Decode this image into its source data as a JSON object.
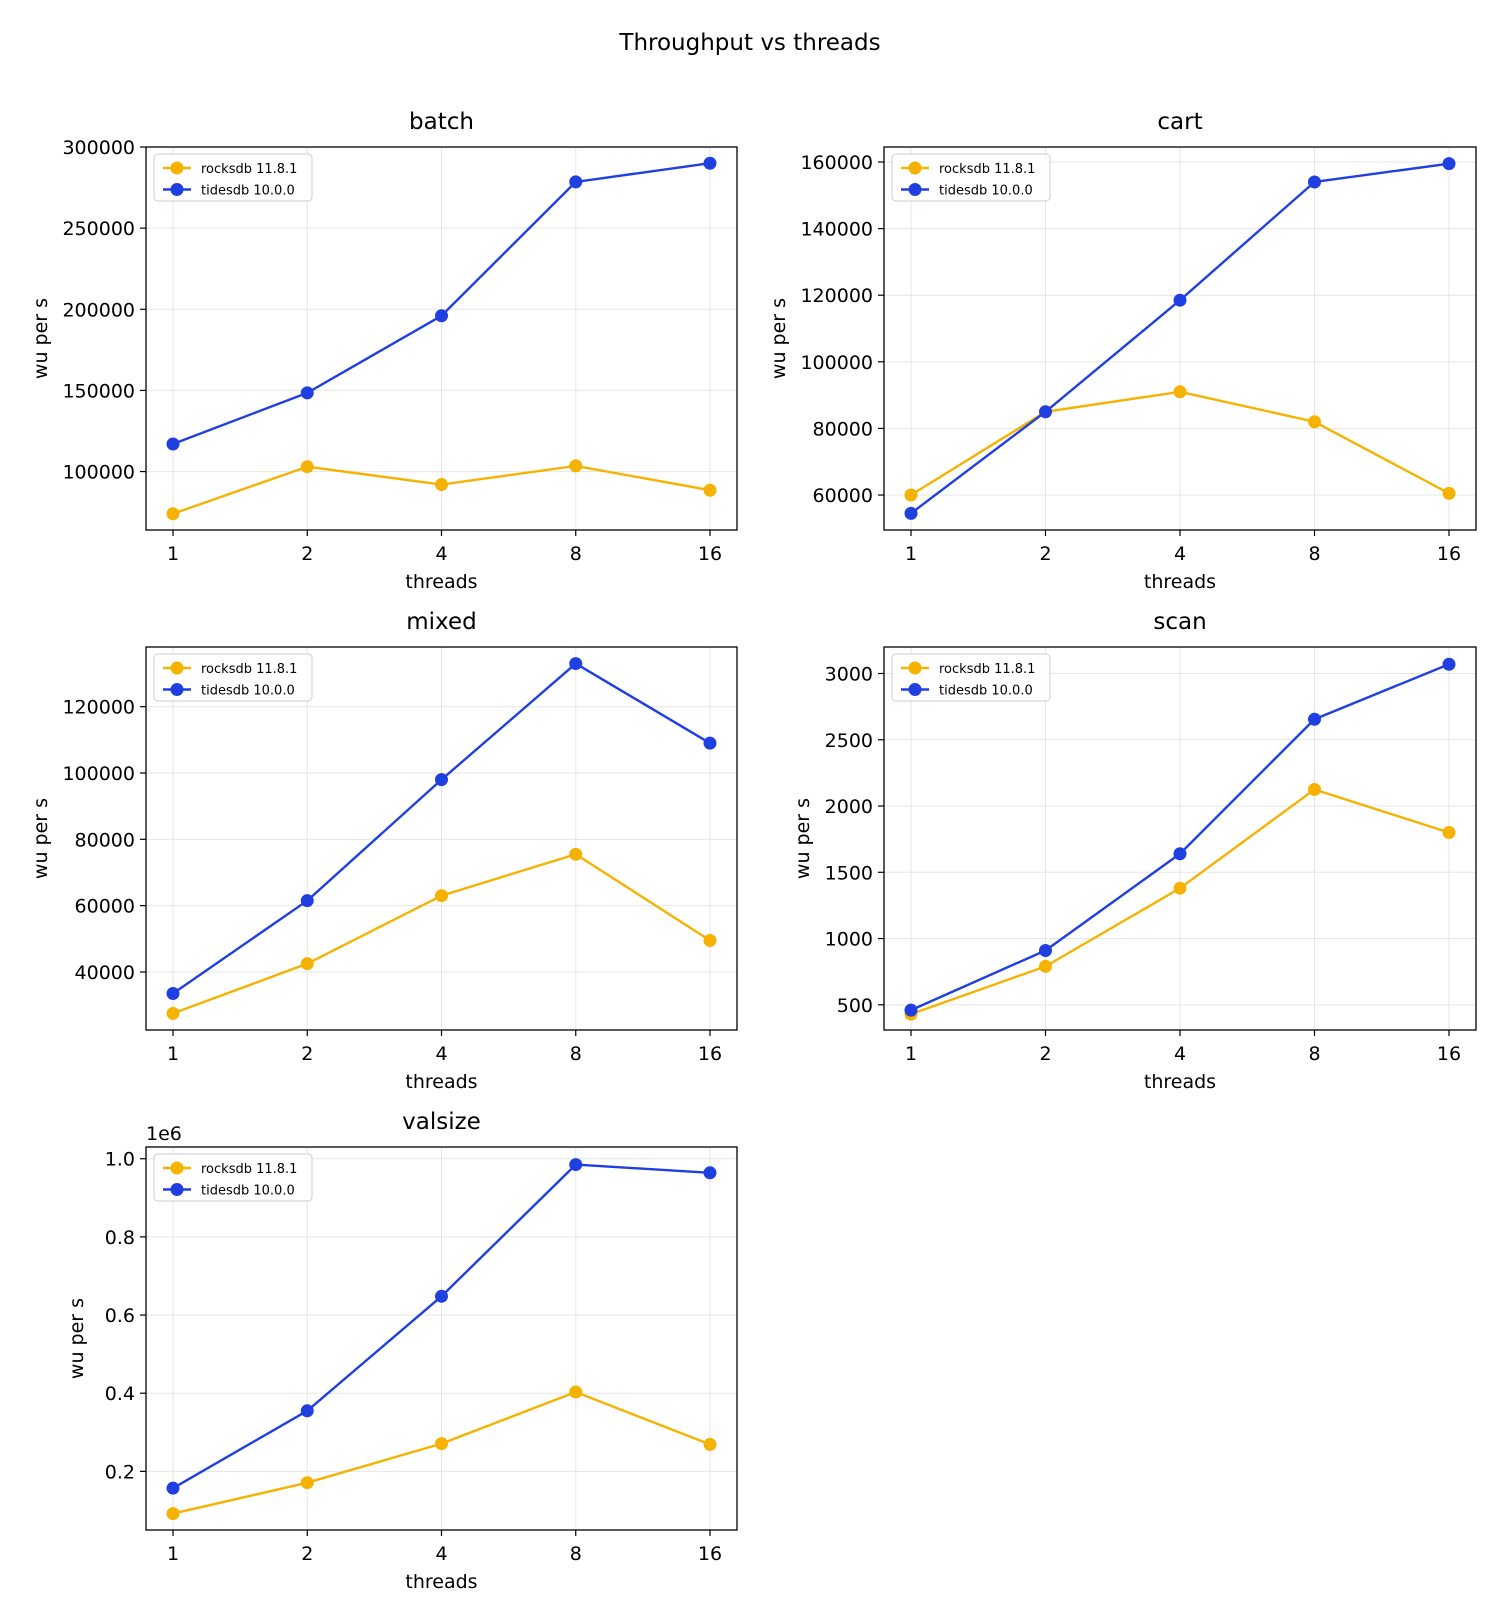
{
  "figure": {
    "title": "Throughput vs threads"
  },
  "colors": {
    "rocksdb": "#f5b200",
    "tidesdb": "#1f3fe0",
    "grid": "#e6e6e6",
    "axes": "#000000"
  },
  "chart_data": [
    {
      "type": "line",
      "title": "batch",
      "xlabel": "threads",
      "ylabel": "wu per s",
      "x": [
        1,
        2,
        4,
        8,
        16
      ],
      "x_scale": "log2",
      "yticks": [
        100000,
        150000,
        200000,
        250000,
        300000
      ],
      "ylim": [
        64000,
        300000
      ],
      "ytick_labels": [
        "100000",
        "150000",
        "200000",
        "250000",
        "300000"
      ],
      "y_offset_label": "",
      "grid": true,
      "legend_position": "upper-left",
      "series": [
        {
          "name": "rocksdb 11.8.1",
          "color": "#f5b200",
          "values": [
            74000,
            103000,
            92000,
            103500,
            88500
          ]
        },
        {
          "name": "tidesdb 10.0.0",
          "color": "#1f3fe0",
          "values": [
            117000,
            148500,
            196000,
            278500,
            290000
          ]
        }
      ]
    },
    {
      "type": "line",
      "title": "cart",
      "xlabel": "threads",
      "ylabel": "wu per s",
      "x": [
        1,
        2,
        4,
        8,
        16
      ],
      "x_scale": "log2",
      "yticks": [
        60000,
        80000,
        100000,
        120000,
        140000,
        160000
      ],
      "ylim": [
        49500,
        164500
      ],
      "ytick_labels": [
        "60000",
        "80000",
        "100000",
        "120000",
        "140000",
        "160000"
      ],
      "y_offset_label": "",
      "grid": true,
      "legend_position": "upper-left",
      "series": [
        {
          "name": "rocksdb 11.8.1",
          "color": "#f5b200",
          "values": [
            60000,
            85000,
            91000,
            82000,
            60500
          ]
        },
        {
          "name": "tidesdb 10.0.0",
          "color": "#1f3fe0",
          "values": [
            54500,
            85000,
            118500,
            154000,
            159500
          ]
        }
      ]
    },
    {
      "type": "line",
      "title": "mixed",
      "xlabel": "threads",
      "ylabel": "wu per s",
      "x": [
        1,
        2,
        4,
        8,
        16
      ],
      "x_scale": "log2",
      "yticks": [
        40000,
        60000,
        80000,
        100000,
        120000
      ],
      "ylim": [
        22500,
        138000
      ],
      "ytick_labels": [
        "40000",
        "60000",
        "80000",
        "100000",
        "120000"
      ],
      "y_offset_label": "",
      "grid": true,
      "legend_position": "upper-left",
      "series": [
        {
          "name": "rocksdb 11.8.1",
          "color": "#f5b200",
          "values": [
            27500,
            42500,
            63000,
            75500,
            49500
          ]
        },
        {
          "name": "tidesdb 10.0.0",
          "color": "#1f3fe0",
          "values": [
            33500,
            61500,
            98000,
            133000,
            109000
          ]
        }
      ]
    },
    {
      "type": "line",
      "title": "scan",
      "xlabel": "threads",
      "ylabel": "wu per s",
      "x": [
        1,
        2,
        4,
        8,
        16
      ],
      "x_scale": "log2",
      "yticks": [
        500,
        1000,
        1500,
        2000,
        2500,
        3000
      ],
      "ylim": [
        310,
        3200
      ],
      "ytick_labels": [
        "500",
        "1000",
        "1500",
        "2000",
        "2500",
        "3000"
      ],
      "y_offset_label": "",
      "grid": true,
      "legend_position": "upper-left",
      "series": [
        {
          "name": "rocksdb 11.8.1",
          "color": "#f5b200",
          "values": [
            430,
            790,
            1380,
            2125,
            1800
          ]
        },
        {
          "name": "tidesdb 10.0.0",
          "color": "#1f3fe0",
          "values": [
            460,
            910,
            1640,
            2655,
            3070
          ]
        }
      ]
    },
    {
      "type": "line",
      "title": "valsize",
      "xlabel": "threads",
      "ylabel": "wu per s",
      "x": [
        1,
        2,
        4,
        8,
        16
      ],
      "x_scale": "log2",
      "yticks": [
        200000,
        400000,
        600000,
        800000,
        1000000
      ],
      "ylim": [
        50000,
        1030000
      ],
      "ytick_labels": [
        "0.2",
        "0.4",
        "0.6",
        "0.8",
        "1.0"
      ],
      "y_offset_label": "1e6",
      "grid": true,
      "legend_position": "upper-left",
      "series": [
        {
          "name": "rocksdb 11.8.1",
          "color": "#f5b200",
          "values": [
            92000,
            171000,
            271000,
            403000,
            269000
          ]
        },
        {
          "name": "tidesdb 10.0.0",
          "color": "#1f3fe0",
          "values": [
            157000,
            355000,
            648000,
            985000,
            964000
          ]
        }
      ]
    }
  ]
}
